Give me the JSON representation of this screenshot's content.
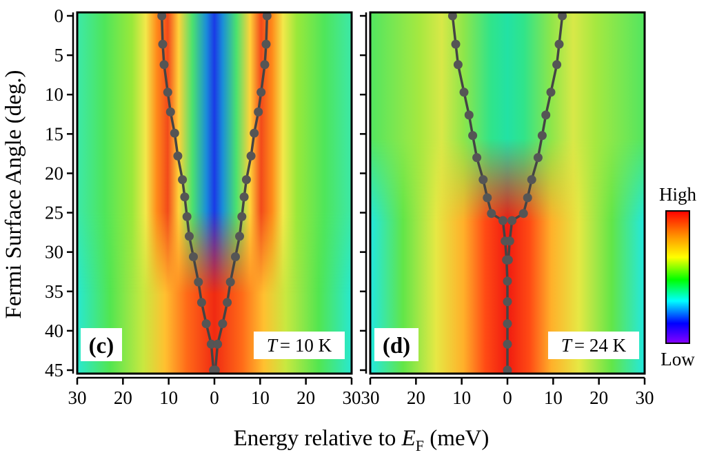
{
  "chart_data": [
    {
      "type": "heatmap",
      "panel_label": "(c)",
      "temperature_label": "T = 10 K",
      "temperature_symbol": "T",
      "temperature_value": "= 10 K",
      "x_domain": [
        -30,
        30
      ],
      "y_domain": [
        0,
        45
      ],
      "x_ticks": [
        -30,
        -20,
        -10,
        0,
        10,
        20,
        30
      ],
      "x_tick_labels": [
        "30",
        "20",
        "10",
        "0",
        "10",
        "20",
        "30"
      ],
      "y_ticks": [
        0,
        5,
        10,
        15,
        20,
        25,
        30,
        35,
        40,
        45
      ],
      "y_tick_labels": [
        "0",
        "5",
        "10",
        "15",
        "20",
        "25",
        "30",
        "35",
        "40",
        "45"
      ],
      "series": [
        {
          "name": "gap (left branch)",
          "points": [
            [
              -11.5,
              0
            ],
            [
              -11.3,
              3.6
            ],
            [
              -11.0,
              6.2
            ],
            [
              -10.2,
              9.7
            ],
            [
              -9.6,
              12.2
            ],
            [
              -8.7,
              14.9
            ],
            [
              -8.0,
              17.8
            ],
            [
              -7.0,
              20.8
            ],
            [
              -6.5,
              23.0
            ],
            [
              -6.0,
              25.5
            ],
            [
              -5.5,
              28.0
            ],
            [
              -4.6,
              30.6
            ],
            [
              -3.5,
              33.8
            ],
            [
              -2.8,
              36.4
            ],
            [
              -1.8,
              39.1
            ],
            [
              -0.7,
              41.7
            ],
            [
              -0.2,
              45.0
            ]
          ]
        },
        {
          "name": "gap (right branch)",
          "points": [
            [
              11.5,
              0
            ],
            [
              11.3,
              3.6
            ],
            [
              11.0,
              6.2
            ],
            [
              10.2,
              9.7
            ],
            [
              9.6,
              12.2
            ],
            [
              8.7,
              14.9
            ],
            [
              8.0,
              17.8
            ],
            [
              7.0,
              20.8
            ],
            [
              6.5,
              23.0
            ],
            [
              6.0,
              25.5
            ],
            [
              5.5,
              28.0
            ],
            [
              4.6,
              30.6
            ],
            [
              3.5,
              33.8
            ],
            [
              2.8,
              36.4
            ],
            [
              1.8,
              39.1
            ],
            [
              0.7,
              41.7
            ],
            [
              0.2,
              45.0
            ]
          ]
        }
      ]
    },
    {
      "type": "heatmap",
      "panel_label": "(d)",
      "temperature_label": "T = 24 K",
      "temperature_symbol": "T",
      "temperature_value": "= 24 K",
      "x_domain": [
        -30,
        30
      ],
      "y_domain": [
        0,
        45
      ],
      "x_ticks": [
        -30,
        -20,
        -10,
        0,
        10,
        20,
        30
      ],
      "x_tick_labels": [
        "30",
        "20",
        "10",
        "0",
        "10",
        "20",
        "30"
      ],
      "series": [
        {
          "name": "gap (left branch)",
          "points": [
            [
              -12.0,
              0
            ],
            [
              -11.3,
              3.6
            ],
            [
              -10.8,
              6.2
            ],
            [
              -9.5,
              9.7
            ],
            [
              -8.4,
              12.6
            ],
            [
              -7.6,
              15.2
            ],
            [
              -6.7,
              18.0
            ],
            [
              -5.3,
              20.8
            ],
            [
              -4.4,
              23.1
            ],
            [
              -3.5,
              25.1
            ],
            [
              -1.0,
              26.0
            ],
            [
              -0.5,
              28.6
            ],
            [
              -0.2,
              31.0
            ],
            [
              0,
              33.7
            ],
            [
              0,
              36.3
            ],
            [
              0,
              39.1
            ],
            [
              0,
              41.7
            ],
            [
              0,
              45.0
            ]
          ]
        },
        {
          "name": "gap (right branch)",
          "points": [
            [
              12.0,
              0
            ],
            [
              11.3,
              3.6
            ],
            [
              10.8,
              6.2
            ],
            [
              9.5,
              9.7
            ],
            [
              8.4,
              12.6
            ],
            [
              7.6,
              15.2
            ],
            [
              6.7,
              18.0
            ],
            [
              5.3,
              20.8
            ],
            [
              4.4,
              23.1
            ],
            [
              3.5,
              25.1
            ],
            [
              1.0,
              26.0
            ],
            [
              0.5,
              28.6
            ],
            [
              0.2,
              31.0
            ]
          ]
        }
      ]
    }
  ],
  "axes": {
    "ylabel": "Fermi Surface Angle (deg.)",
    "xlabel_prefix": "Energy relative to ",
    "xlabel_symbol": "E",
    "xlabel_subscript": "F",
    "xlabel_suffix": " (meV)"
  },
  "colorbar": {
    "high_label": "High",
    "low_label": "Low",
    "colors": [
      "#ff0000",
      "#ff8800",
      "#ffff00",
      "#00ff00",
      "#00ffff",
      "#0000ff",
      "#8800ff"
    ]
  },
  "colors": {
    "marker": "#555555",
    "line": "#444444"
  }
}
